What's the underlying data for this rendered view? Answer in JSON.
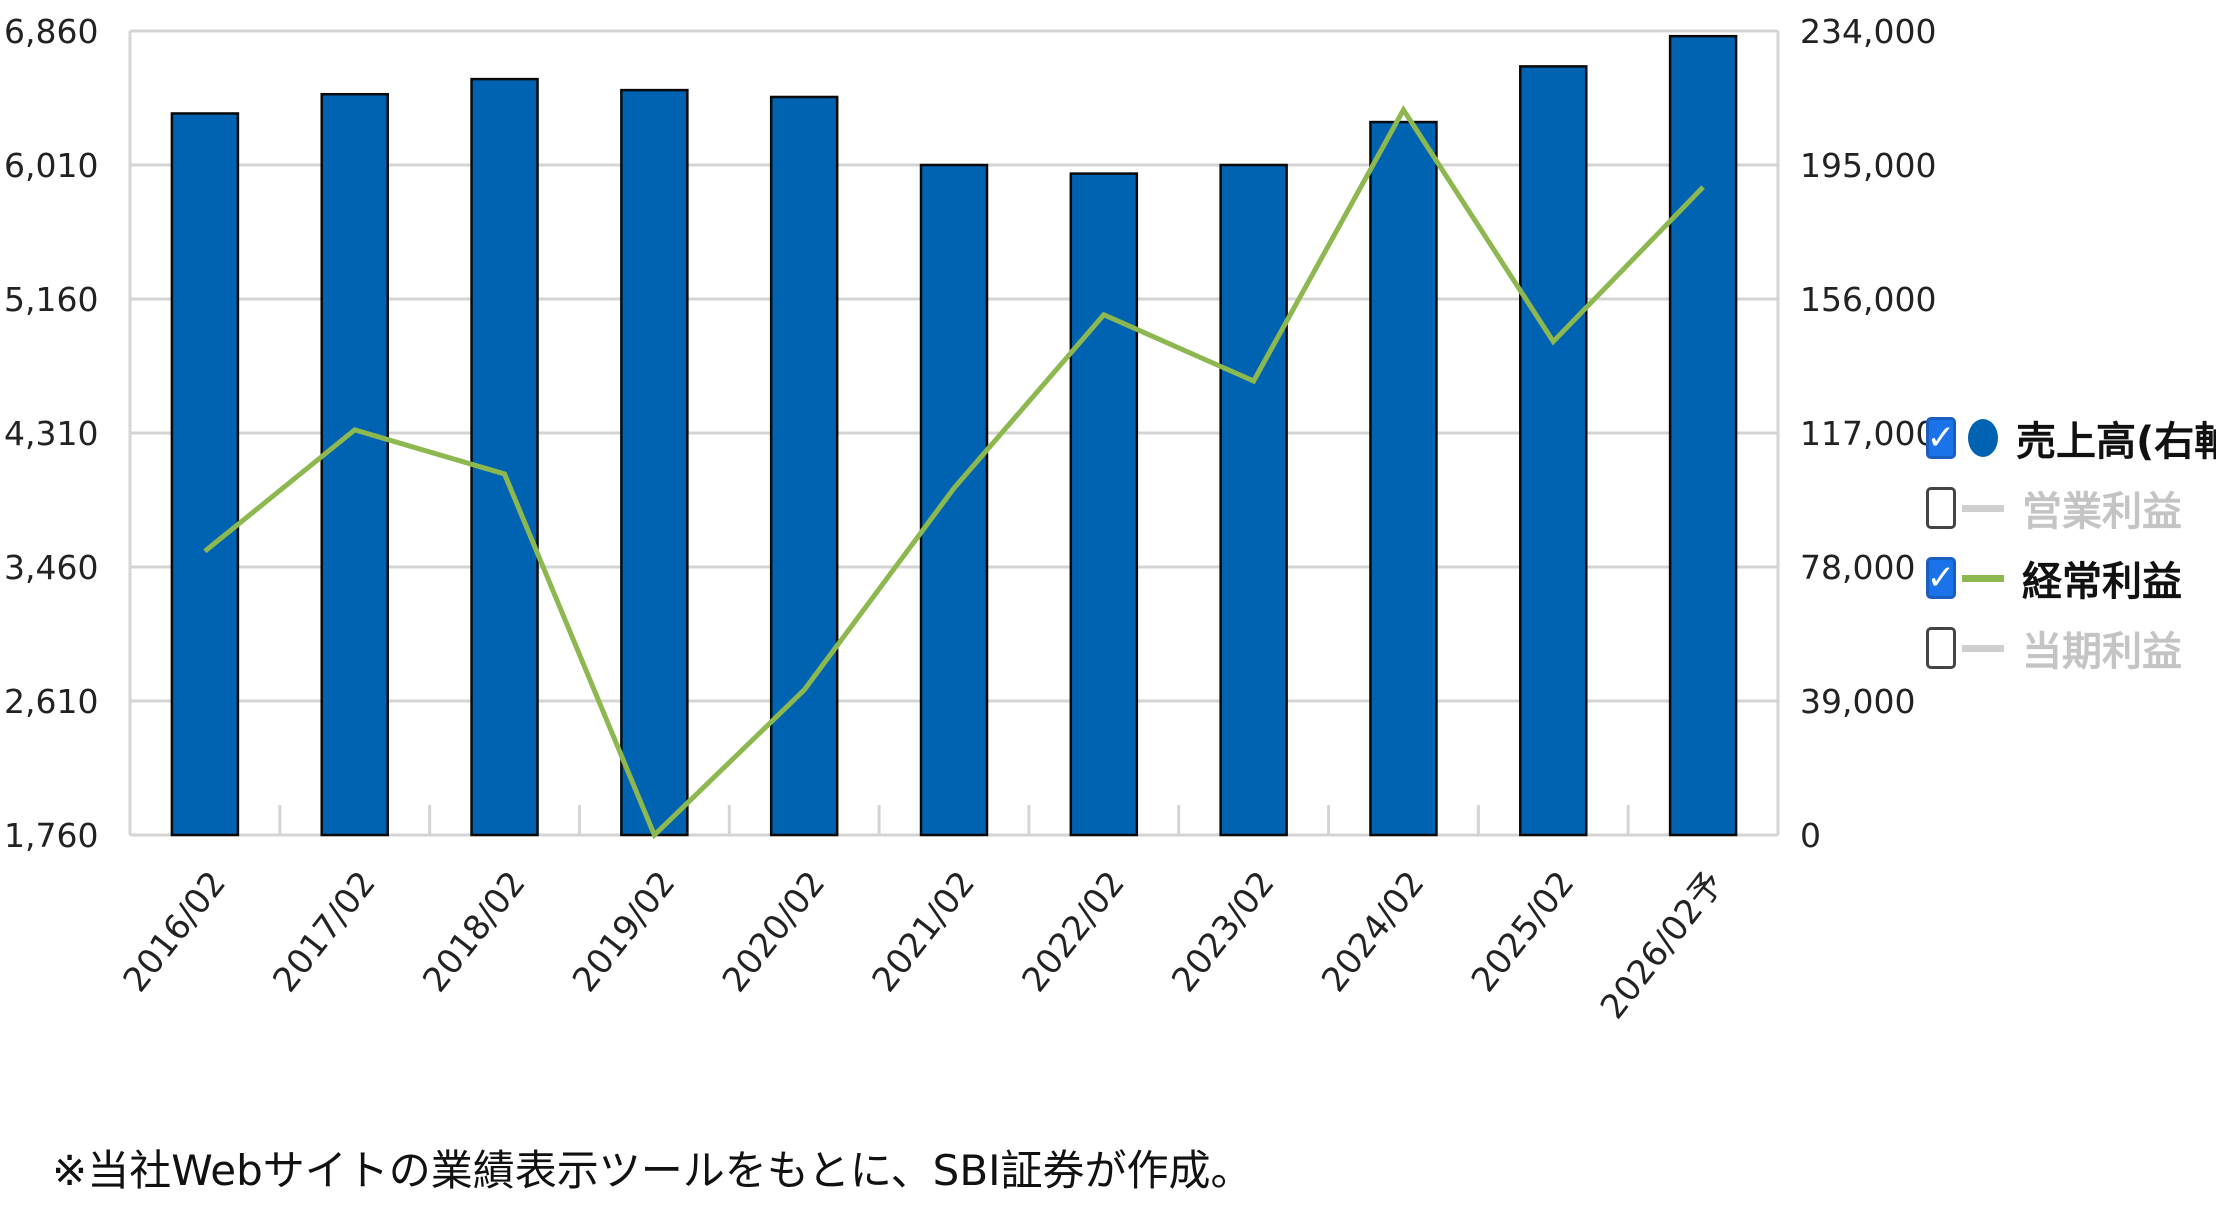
{
  "chart_data": {
    "type": "bar",
    "categories": [
      "2016/02",
      "2017/02",
      "2018/02",
      "2019/02",
      "2020/02",
      "2021/02",
      "2022/02",
      "2023/02",
      "2024/02",
      "2025/02",
      "2026/02予"
    ],
    "series": [
      {
        "name": "売上高(右軸)",
        "type": "bar",
        "axis": "right",
        "values": [
          210000,
          215600,
          220000,
          216800,
          214800,
          195000,
          192500,
          195000,
          207500,
          223700,
          232500
        ]
      },
      {
        "name": "経常利益",
        "type": "line",
        "axis": "left",
        "values": [
          3560,
          4330,
          4050,
          1760,
          2680,
          3960,
          5060,
          4640,
          6360,
          4890,
          5870
        ]
      }
    ],
    "left_axis": {
      "ylim": [
        1760,
        6860
      ],
      "ticks": [
        "1,760",
        "2,610",
        "3,460",
        "4,310",
        "5,160",
        "6,010",
        "6,860"
      ]
    },
    "right_axis": {
      "ylim": [
        0,
        234000
      ],
      "ticks": [
        "0",
        "39,000",
        "78,000",
        "117,000",
        "156,000",
        "195,000",
        "234,000"
      ]
    },
    "grid": true,
    "legend_position": "right"
  },
  "legend": {
    "items": [
      {
        "label": "売上高(右軸)",
        "checked": true,
        "marker": "dot",
        "color": "#0063b1",
        "text_color": "#111111"
      },
      {
        "label": "営業利益",
        "checked": false,
        "marker": "line",
        "color": "#cfcfcf",
        "text_color": "#c4c4c4"
      },
      {
        "label": "経常利益",
        "checked": true,
        "marker": "line",
        "color": "#8db84f",
        "text_color": "#111111"
      },
      {
        "label": "当期利益",
        "checked": false,
        "marker": "line",
        "color": "#cfcfcf",
        "text_color": "#c4c4c4"
      }
    ],
    "check_glyph": "✓"
  },
  "colors": {
    "bar": "#0063b1",
    "bar_outline": "#0a0a0a",
    "line": "#8db84f",
    "grid": "#d4d4d4"
  },
  "footnote": "※当社Webサイトの業績表示ツールをもとに、SBI証券が作成。"
}
